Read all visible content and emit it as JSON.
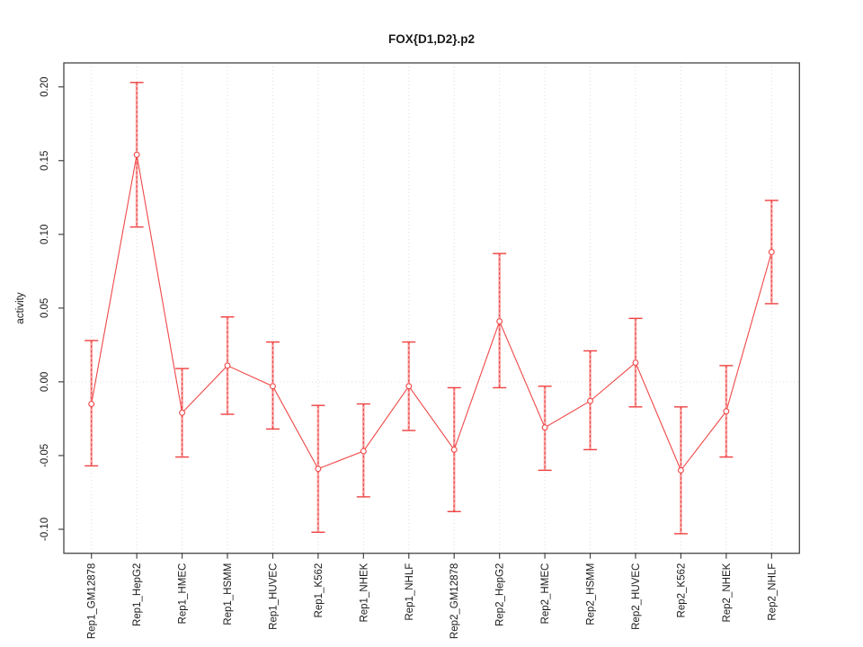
{
  "window": {
    "background_color": "#ffffff"
  },
  "chart_data": {
    "type": "line",
    "title": "FOX{D1,D2}.p2",
    "xlabel": "",
    "ylabel": "activity",
    "ylim": [
      -0.116,
      0.216
    ],
    "ytick_values": [
      0.2,
      0.15,
      0.1,
      0.05,
      0.0,
      -0.05,
      -0.1
    ],
    "ytick_labels": [
      "0.20",
      "0.15",
      "0.10",
      "0.05",
      "0.00",
      "-0.05",
      "-0.10"
    ],
    "grid": "vertical dotted gridline at every category; dotted horizontal line at y=0; no legend",
    "legend_position": "none",
    "marker": "open-circle",
    "error_bars": true,
    "categories": [
      "Rep1_GM12878",
      "Rep1_HepG2",
      "Rep1_HMEC",
      "Rep1_HSMM",
      "Rep1_HUVEC",
      "Rep1_K562",
      "Rep1_NHEK",
      "Rep1_NHLF",
      "Rep2_GM12878",
      "Rep2_HepG2",
      "Rep2_HMEC",
      "Rep2_HSMM",
      "Rep2_HUVEC",
      "Rep2_K562",
      "Rep2_NHEK",
      "Rep2_NHLF"
    ],
    "series": [
      {
        "name": "activity",
        "values": [
          -0.015,
          0.154,
          -0.021,
          0.011,
          -0.003,
          -0.059,
          -0.047,
          -0.003,
          -0.046,
          0.041,
          -0.031,
          -0.013,
          0.013,
          -0.06,
          -0.02,
          0.088
        ],
        "error_high": [
          0.028,
          0.203,
          0.009,
          0.044,
          0.027,
          -0.016,
          -0.015,
          0.027,
          -0.004,
          0.087,
          -0.003,
          0.021,
          0.043,
          -0.017,
          0.011,
          0.123
        ],
        "error_low": [
          -0.057,
          0.105,
          -0.051,
          -0.022,
          -0.032,
          -0.102,
          -0.078,
          -0.033,
          -0.088,
          -0.004,
          -0.06,
          -0.046,
          -0.017,
          -0.103,
          -0.051,
          0.053
        ]
      }
    ],
    "colors": {
      "line": "#f04747",
      "marker_stroke": "#f04747",
      "error_bar_body": "#f8a8a8",
      "error_bar_dash": "#ee4040",
      "grid": "#dedede",
      "axis_box": "#454545",
      "tick": "#454545",
      "text": "#1a1a1a"
    }
  }
}
